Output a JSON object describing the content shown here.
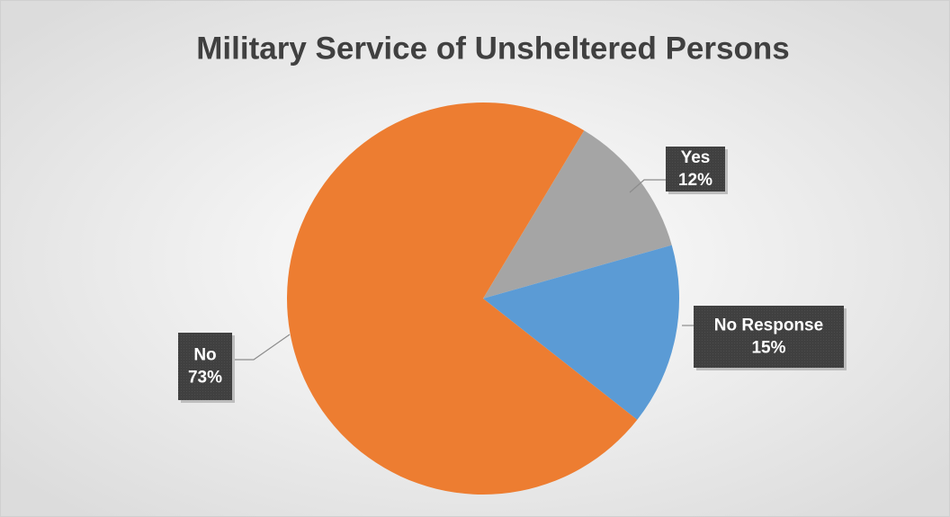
{
  "chart_data": {
    "type": "pie",
    "title": "Military Service of Unsheltered Persons",
    "categories": [
      "Yes",
      "No Response",
      "No"
    ],
    "values": [
      12,
      15,
      73
    ],
    "value_labels": [
      "12%",
      "15%",
      "73%"
    ],
    "colors": [
      "#a5a5a5",
      "#5b9bd5",
      "#ed7d31"
    ]
  }
}
